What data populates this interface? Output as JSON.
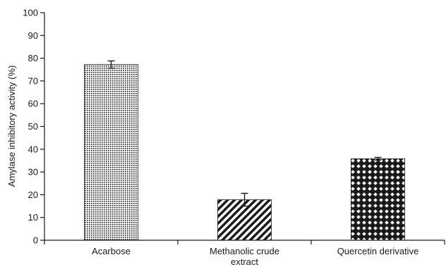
{
  "chart_data": {
    "type": "bar",
    "title": "",
    "xlabel": "",
    "ylabel": "Amylase inhibitory activity (%)",
    "ylim": [
      0,
      100
    ],
    "yticks": [
      0,
      10,
      20,
      30,
      40,
      50,
      60,
      70,
      80,
      90,
      100
    ],
    "grid": false,
    "categories": [
      [
        "Acarbose"
      ],
      [
        "Methanolic crude",
        "extract"
      ],
      [
        "Quercetin derivative"
      ]
    ],
    "values": [
      77.2,
      17.8,
      35.8
    ],
    "errors": [
      1.6,
      2.8,
      0.6
    ],
    "patterns": [
      "dots",
      "diagonal-stripes",
      "diamond-lattice"
    ],
    "colors": {
      "axis": "#1a1a1a",
      "bar_fill": "#ffffff",
      "pattern_ink": "#1a1a1a"
    }
  }
}
